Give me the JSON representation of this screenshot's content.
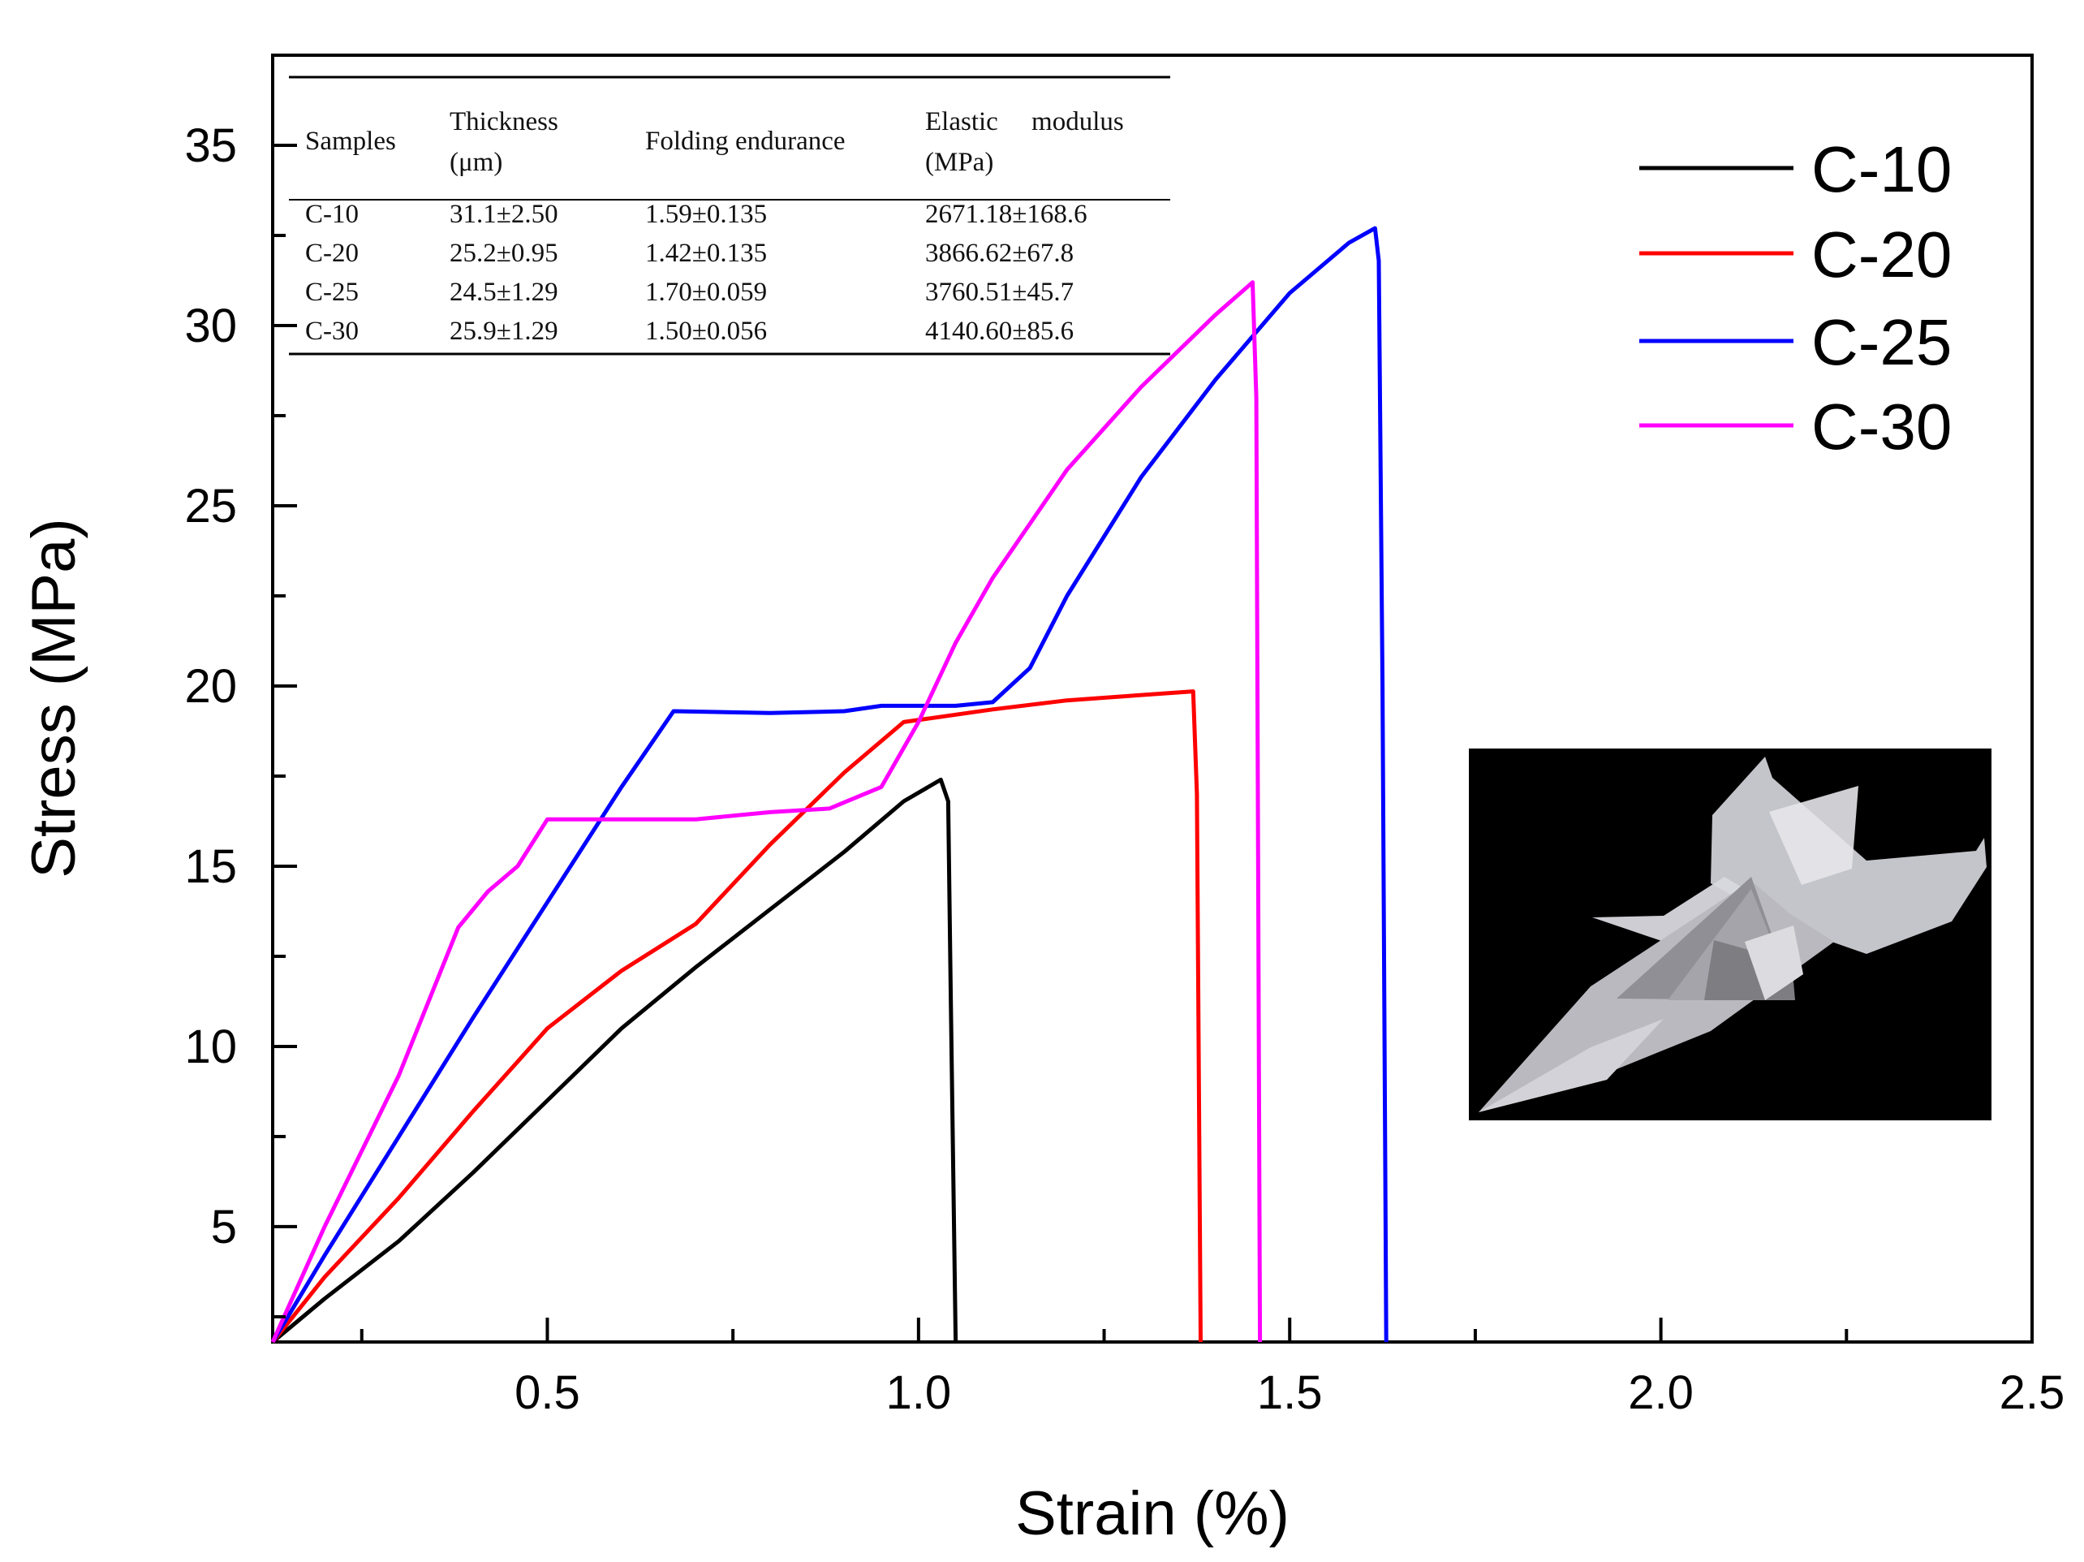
{
  "chart_data": {
    "type": "line",
    "title": "",
    "xlabel": "Strain (%)",
    "ylabel": "Stress (MPa)",
    "xlim": [
      0.13,
      2.5
    ],
    "ylim": [
      1.8,
      37.5
    ],
    "x_ticks": [
      0.5,
      1.0,
      1.5,
      2.0,
      2.5
    ],
    "x_tick_labels": [
      "0.5",
      "1.0",
      "1.5",
      "2.0",
      "2.5"
    ],
    "y_ticks": [
      5,
      10,
      15,
      20,
      25,
      30,
      35
    ],
    "y_tick_labels": [
      "5",
      "10",
      "15",
      "20",
      "25",
      "30",
      "35"
    ],
    "grid": false,
    "legend_position": "top-right",
    "series": [
      {
        "name": "C-10",
        "color": "#000000",
        "points": [
          [
            0.13,
            1.6
          ],
          [
            0.2,
            3.0
          ],
          [
            0.3,
            4.6
          ],
          [
            0.4,
            6.5
          ],
          [
            0.5,
            8.5
          ],
          [
            0.6,
            10.5
          ],
          [
            0.7,
            12.2
          ],
          [
            0.8,
            13.8
          ],
          [
            0.9,
            15.4
          ],
          [
            0.98,
            16.8
          ],
          [
            1.03,
            17.4
          ],
          [
            1.04,
            16.8
          ],
          [
            1.043,
            12.0
          ],
          [
            1.05,
            1.8
          ]
        ]
      },
      {
        "name": "C-20",
        "color": "#ff0000",
        "points": [
          [
            0.13,
            1.6
          ],
          [
            0.2,
            3.6
          ],
          [
            0.3,
            5.8
          ],
          [
            0.4,
            8.2
          ],
          [
            0.5,
            10.5
          ],
          [
            0.6,
            12.1
          ],
          [
            0.7,
            13.4
          ],
          [
            0.8,
            15.6
          ],
          [
            0.9,
            17.6
          ],
          [
            0.98,
            19.0
          ],
          [
            1.1,
            19.35
          ],
          [
            1.2,
            19.6
          ],
          [
            1.3,
            19.75
          ],
          [
            1.37,
            19.85
          ],
          [
            1.375,
            17.0
          ],
          [
            1.38,
            1.8
          ]
        ]
      },
      {
        "name": "C-25",
        "color": "#0000ff",
        "points": [
          [
            0.13,
            1.6
          ],
          [
            0.2,
            4.2
          ],
          [
            0.3,
            7.5
          ],
          [
            0.4,
            10.8
          ],
          [
            0.5,
            14.0
          ],
          [
            0.6,
            17.2
          ],
          [
            0.67,
            19.3
          ],
          [
            0.8,
            19.25
          ],
          [
            0.9,
            19.3
          ],
          [
            0.95,
            19.45
          ],
          [
            1.05,
            19.45
          ],
          [
            1.1,
            19.55
          ],
          [
            1.15,
            20.5
          ],
          [
            1.2,
            22.5
          ],
          [
            1.3,
            25.8
          ],
          [
            1.4,
            28.5
          ],
          [
            1.5,
            30.9
          ],
          [
            1.58,
            32.3
          ],
          [
            1.615,
            32.7
          ],
          [
            1.62,
            31.8
          ],
          [
            1.625,
            20.0
          ],
          [
            1.63,
            1.8
          ]
        ]
      },
      {
        "name": "C-30",
        "color": "#ff00ff",
        "points": [
          [
            0.13,
            1.6
          ],
          [
            0.2,
            5.0
          ],
          [
            0.3,
            9.2
          ],
          [
            0.38,
            13.3
          ],
          [
            0.42,
            14.3
          ],
          [
            0.46,
            15.0
          ],
          [
            0.5,
            16.3
          ],
          [
            0.6,
            16.3
          ],
          [
            0.7,
            16.3
          ],
          [
            0.8,
            16.5
          ],
          [
            0.88,
            16.6
          ],
          [
            0.95,
            17.2
          ],
          [
            1.0,
            19.0
          ],
          [
            1.05,
            21.2
          ],
          [
            1.1,
            23.0
          ],
          [
            1.2,
            26.0
          ],
          [
            1.3,
            28.3
          ],
          [
            1.4,
            30.3
          ],
          [
            1.45,
            31.2
          ],
          [
            1.455,
            28.0
          ],
          [
            1.46,
            1.8
          ]
        ]
      }
    ],
    "annotations": [
      {
        "type": "table",
        "columns": [
          "Samples",
          "Thickness (μm)",
          "Folding endurance",
          "Elastic modulus (MPa)"
        ],
        "headers": [
          [
            "Samples"
          ],
          [
            "Thickness",
            "(μm)"
          ],
          [
            "Folding endurance"
          ],
          [
            "Elastic     modulus",
            "(MPa)"
          ]
        ],
        "rows": [
          [
            "C-10",
            "31.1±2.50",
            "1.59±0.135",
            "2671.18±168.6"
          ],
          [
            "C-20",
            "25.2±0.95",
            "1.42±0.135",
            "3866.62±67.8"
          ],
          [
            "C-25",
            "24.5±1.29",
            "1.70±0.059",
            "3760.51±45.7"
          ],
          [
            "C-30",
            "25.9±1.29",
            "1.50±0.056",
            "4140.60±85.6"
          ]
        ]
      },
      {
        "type": "inset-photo",
        "subject": "folded-paper-airplane"
      }
    ]
  }
}
